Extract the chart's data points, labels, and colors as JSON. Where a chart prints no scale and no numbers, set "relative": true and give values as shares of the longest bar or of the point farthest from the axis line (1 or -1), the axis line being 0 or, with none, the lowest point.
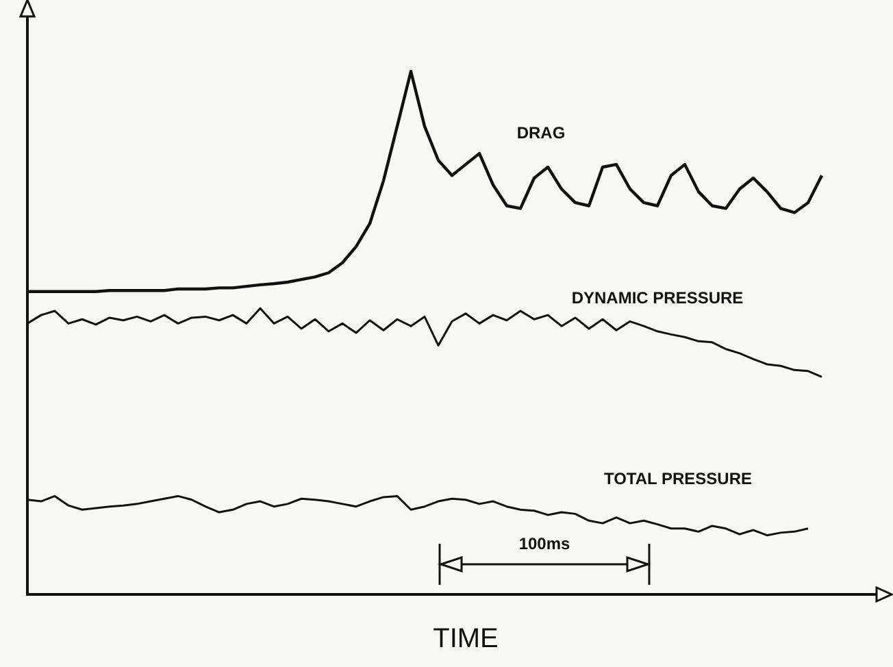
{
  "chart_data": {
    "type": "line",
    "relative": true,
    "tick_labels": false,
    "xlabel": "TIME",
    "annotations": [
      "100ms"
    ],
    "categories": [
      null,
      null,
      null,
      null,
      null,
      null,
      null,
      null,
      null,
      null,
      null,
      null,
      null,
      null,
      null,
      null,
      null,
      null,
      null,
      null,
      null,
      null,
      null,
      null,
      null,
      null,
      null,
      null,
      null,
      null,
      null,
      null,
      null,
      null,
      null,
      null,
      null,
      null,
      null,
      null,
      null,
      null,
      null,
      null,
      null,
      null,
      null,
      null,
      null,
      null,
      null,
      null,
      null,
      null,
      null,
      null,
      null,
      null,
      null,
      null,
      null,
      null,
      null
    ],
    "series": [
      {
        "name": "DRAG",
        "color": "#111111",
        "values": [
          0.579,
          0.579,
          0.579,
          0.579,
          0.579,
          0.579,
          0.581,
          0.581,
          0.581,
          0.581,
          0.581,
          0.584,
          0.584,
          0.584,
          0.586,
          0.586,
          0.589,
          0.592,
          0.594,
          0.597,
          0.602,
          0.607,
          0.615,
          0.634,
          0.665,
          0.709,
          0.791,
          0.895,
          1,
          0.895,
          0.83,
          0.801,
          0.822,
          0.843,
          0.783,
          0.743,
          0.738,
          0.796,
          0.817,
          0.775,
          0.749,
          0.743,
          0.817,
          0.822,
          0.775,
          0.749,
          0.743,
          0.801,
          0.822,
          0.77,
          0.743,
          0.738,
          0.775,
          0.796,
          0.77,
          0.738,
          0.73,
          0.749,
          0.801,
          null,
          null,
          null,
          null
        ]
      },
      {
        "name": "DYNAMIC PRESSURE",
        "color": "#111111",
        "values": [
          0.518,
          0.534,
          0.542,
          0.518,
          0.526,
          0.516,
          0.529,
          0.524,
          0.531,
          0.522,
          0.534,
          0.518,
          0.529,
          0.531,
          0.524,
          0.534,
          0.518,
          0.547,
          0.518,
          0.531,
          0.508,
          0.526,
          0.503,
          0.518,
          0.5,
          0.524,
          0.505,
          0.526,
          0.513,
          0.531,
          0.476,
          0.522,
          0.537,
          0.518,
          0.534,
          0.524,
          0.542,
          0.526,
          0.534,
          0.513,
          0.529,
          0.508,
          0.526,
          0.505,
          0.522,
          0.513,
          0.503,
          0.497,
          0.492,
          0.484,
          0.482,
          0.469,
          0.461,
          0.45,
          0.44,
          0.437,
          0.429,
          0.427,
          0.416,
          null,
          null,
          null,
          null
        ]
      },
      {
        "name": "TOTAL PRESSURE",
        "color": "#111111",
        "values": [
          0.181,
          0.178,
          0.188,
          0.17,
          0.162,
          0.165,
          0.168,
          0.17,
          0.173,
          0.178,
          0.183,
          0.188,
          0.181,
          0.168,
          0.157,
          0.162,
          0.173,
          0.178,
          0.168,
          0.173,
          0.183,
          0.181,
          0.178,
          0.173,
          0.168,
          0.178,
          0.186,
          0.188,
          0.162,
          0.168,
          0.178,
          0.183,
          0.181,
          0.173,
          0.178,
          0.168,
          0.162,
          0.16,
          0.152,
          0.157,
          0.154,
          0.141,
          0.136,
          0.147,
          0.136,
          0.141,
          0.134,
          0.126,
          0.126,
          0.12,
          0.131,
          0.126,
          0.115,
          0.123,
          0.113,
          0.118,
          0.12,
          0.126,
          null,
          null,
          null,
          null,
          null
        ]
      }
    ]
  }
}
